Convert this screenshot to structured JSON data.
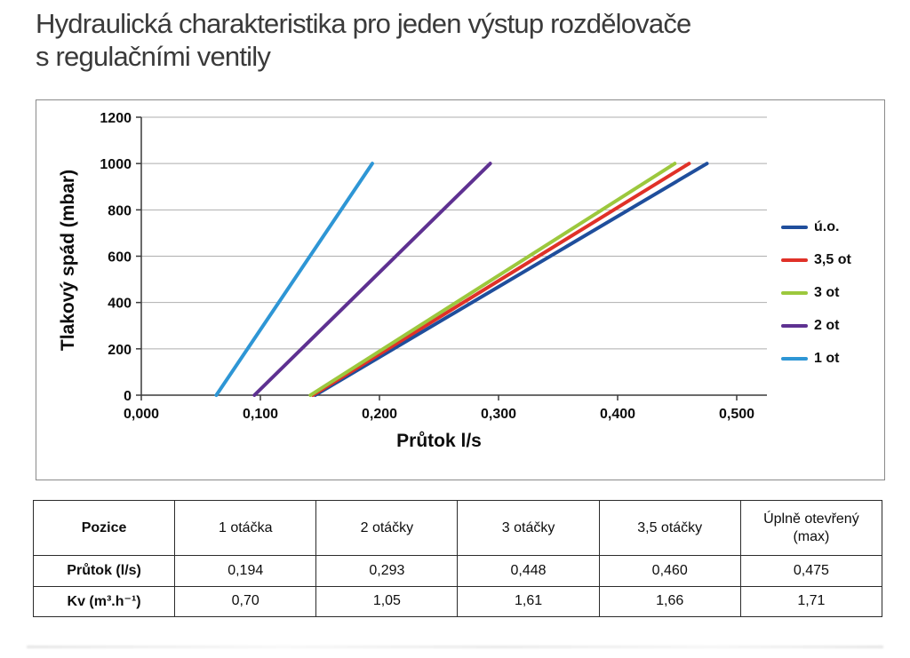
{
  "page": {
    "title_line1": "Hydraulická charakteristika pro jeden výstup rozdělovače",
    "title_line2": "s regulačními ventily"
  },
  "chart_data": {
    "type": "line",
    "title": "",
    "xlabel": "Průtok l/s",
    "ylabel": "Tlakový spád (mbar)",
    "xlim": [
      0,
      0.5
    ],
    "ylim": [
      0,
      1200
    ],
    "x_ticks": [
      "0,000",
      "0,100",
      "0,200",
      "0,300",
      "0,400",
      "0,500"
    ],
    "x_tick_values": [
      0,
      0.1,
      0.2,
      0.3,
      0.4,
      0.5
    ],
    "y_ticks": [
      "0",
      "200",
      "400",
      "600",
      "800",
      "1000",
      "1200"
    ],
    "y_tick_values": [
      0,
      200,
      400,
      600,
      800,
      1000,
      1200
    ],
    "grid": "horizontal",
    "legend_position": "right",
    "axis_color": "#3a3a3a",
    "grid_color": "#aeaeae",
    "series": [
      {
        "name": "ú.o.",
        "color": "#1f4e9c",
        "points": [
          [
            0.146,
            0
          ],
          [
            0.475,
            1000
          ]
        ]
      },
      {
        "name": "3,5 ot",
        "color": "#e03128",
        "points": [
          [
            0.144,
            0
          ],
          [
            0.46,
            1000
          ]
        ]
      },
      {
        "name": "3 ot",
        "color": "#9cc83d",
        "points": [
          [
            0.142,
            0
          ],
          [
            0.448,
            1000
          ]
        ]
      },
      {
        "name": "2 ot",
        "color": "#5e3191",
        "points": [
          [
            0.095,
            0
          ],
          [
            0.293,
            1000
          ]
        ]
      },
      {
        "name": "1 ot",
        "color": "#2e96d5",
        "points": [
          [
            0.063,
            0
          ],
          [
            0.194,
            1000
          ]
        ]
      }
    ]
  },
  "table": {
    "headers": [
      "Pozice",
      "1 otáčka",
      "2 otáčky",
      "3 otáčky",
      "3,5 otáčky",
      "Úplně otevřený (max)"
    ],
    "rows": [
      {
        "label": "Průtok (l/s)",
        "values": [
          "0,194",
          "0,293",
          "0,448",
          "0,460",
          "0,475"
        ]
      },
      {
        "label": "Kv (m³.h⁻¹)",
        "values": [
          "0,70",
          "1,05",
          "1,61",
          "1,66",
          "1,71"
        ]
      }
    ]
  }
}
